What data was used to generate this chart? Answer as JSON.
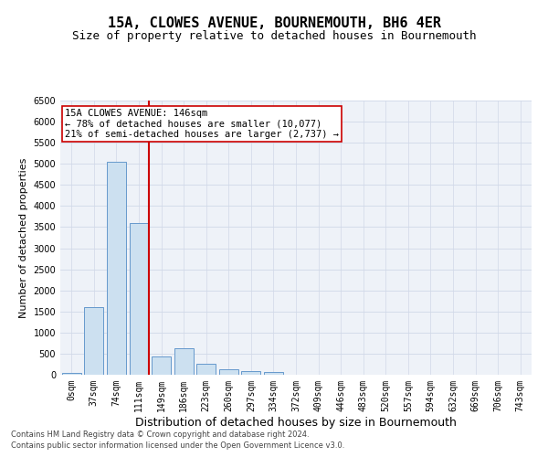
{
  "title": "15A, CLOWES AVENUE, BOURNEMOUTH, BH6 4ER",
  "subtitle": "Size of property relative to detached houses in Bournemouth",
  "xlabel": "Distribution of detached houses by size in Bournemouth",
  "ylabel": "Number of detached properties",
  "categories": [
    "0sqm",
    "37sqm",
    "74sqm",
    "111sqm",
    "149sqm",
    "186sqm",
    "223sqm",
    "260sqm",
    "297sqm",
    "334sqm",
    "372sqm",
    "409sqm",
    "446sqm",
    "483sqm",
    "520sqm",
    "557sqm",
    "594sqm",
    "632sqm",
    "669sqm",
    "706sqm",
    "743sqm"
  ],
  "values": [
    50,
    1600,
    5050,
    3600,
    430,
    620,
    270,
    120,
    90,
    60,
    0,
    0,
    0,
    0,
    0,
    0,
    0,
    0,
    0,
    0,
    0
  ],
  "bar_color": "#cce0f0",
  "bar_edge_color": "#6699cc",
  "vline_color": "#cc0000",
  "annotation_text": "15A CLOWES AVENUE: 146sqm\n← 78% of detached houses are smaller (10,077)\n21% of semi-detached houses are larger (2,737) →",
  "annotation_box_color": "white",
  "annotation_box_edge": "#cc0000",
  "ylim": [
    0,
    6500
  ],
  "yticks": [
    0,
    500,
    1000,
    1500,
    2000,
    2500,
    3000,
    3500,
    4000,
    4500,
    5000,
    5500,
    6000,
    6500
  ],
  "grid_color": "#d0d8e8",
  "background_color": "#eef2f8",
  "footer_line1": "Contains HM Land Registry data © Crown copyright and database right 2024.",
  "footer_line2": "Contains public sector information licensed under the Open Government Licence v3.0.",
  "title_fontsize": 11,
  "subtitle_fontsize": 9,
  "xlabel_fontsize": 9,
  "ylabel_fontsize": 8,
  "tick_fontsize": 7,
  "annotation_fontsize": 7.5,
  "footer_fontsize": 6
}
